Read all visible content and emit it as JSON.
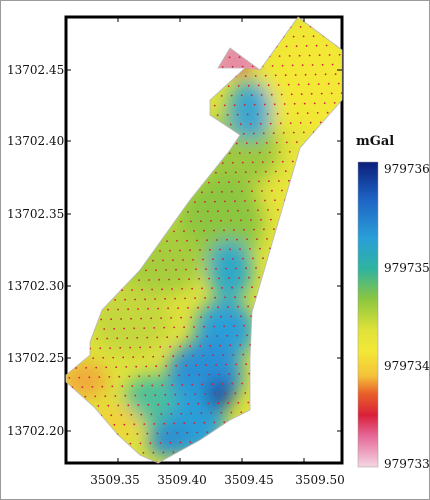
{
  "map": {
    "x_ticks": [
      "3509.35",
      "3509.40",
      "3509.45",
      "3509.50"
    ],
    "y_ticks": [
      "13702.45",
      "13702.40",
      "13702.35",
      "13702.30",
      "13702.25",
      "13702.20"
    ]
  },
  "legend": {
    "unit": "mGal",
    "labels": [
      "979736",
      "979735",
      "979734",
      "979733"
    ],
    "colors": {
      "high": "#0b1f7a",
      "mid_high": "#2a9fd8",
      "mid": "#8cc63f",
      "mid_low": "#f2e836",
      "low": "#e8602a",
      "lowest": "#f5d6e4"
    }
  },
  "chart_data": {
    "type": "heatmap",
    "title": "",
    "xlabel": "",
    "ylabel": "",
    "xlim": [
      3509.32,
      3509.51
    ],
    "ylim": [
      13702.18,
      13702.47
    ],
    "color_scale": {
      "unit": "mGal",
      "ticks": [
        979736,
        979735,
        979734,
        979733
      ]
    }
  }
}
